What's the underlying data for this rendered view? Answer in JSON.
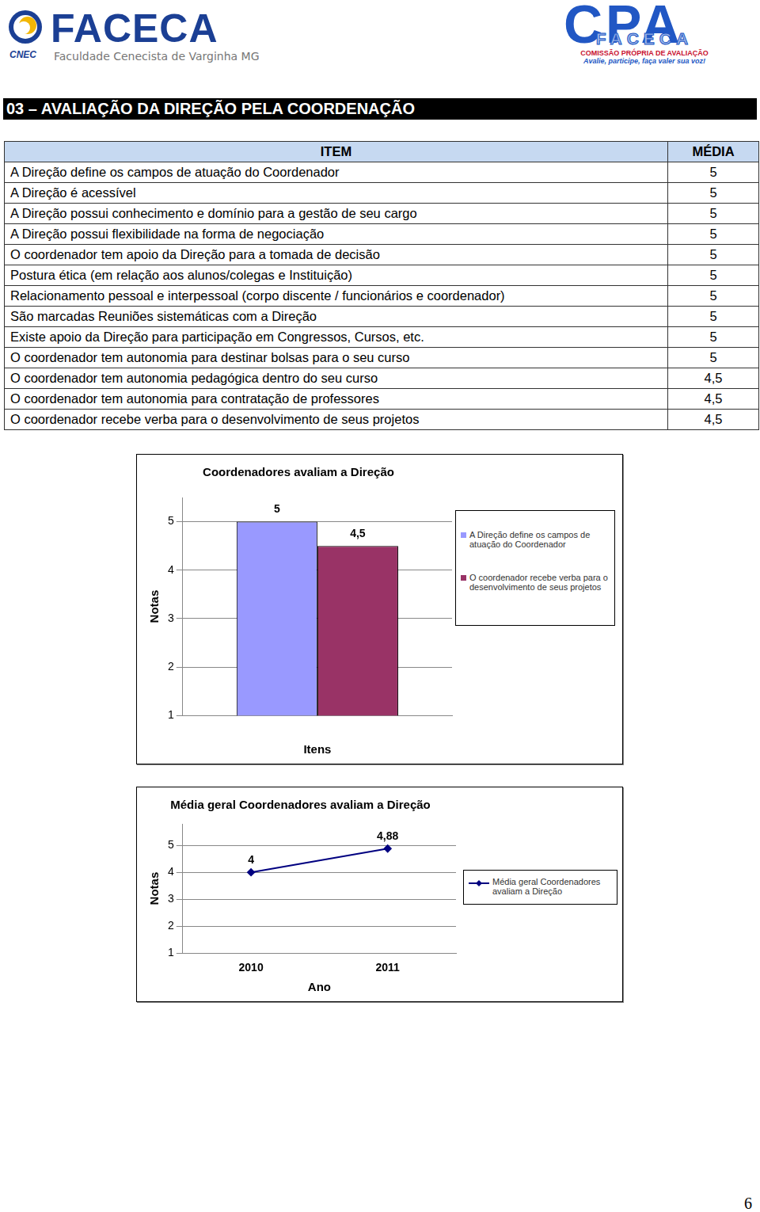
{
  "header": {
    "logo_left": {
      "title": "FACECA",
      "subtitle": "Faculdade Cenecista de Varginha MG",
      "badge": "CNEC"
    },
    "logo_right": {
      "title": "CPA",
      "overlay": "FACECA",
      "subtitle": "COMISSÃO PRÓPRIA DE AVALIAÇÃO",
      "slogan": "Avalie, participe, faça valer sua voz!"
    }
  },
  "section_title": "03 – AVALIAÇÃO DA DIREÇÃO PELA COORDENAÇÃO",
  "table": {
    "columns": [
      "ITEM",
      "MÉDIA"
    ],
    "rows": [
      [
        "A Direção define os campos de atuação do Coordenador",
        "5"
      ],
      [
        "A Direção é acessível",
        "5"
      ],
      [
        "A Direção possui conhecimento e domínio para a gestão de seu cargo",
        "5"
      ],
      [
        "A Direção possui flexibilidade na forma de negociação",
        "5"
      ],
      [
        "O coordenador tem apoio da Direção para a tomada de decisão",
        "5"
      ],
      [
        "Postura ética (em relação aos alunos/colegas e Instituição)",
        "5"
      ],
      [
        "Relacionamento pessoal e interpessoal (corpo discente / funcionários e coordenador)",
        "5"
      ],
      [
        "São marcadas Reuniões sistemáticas com a Direção",
        "5"
      ],
      [
        "Existe apoio da Direção para participação em Congressos, Cursos, etc.",
        "5"
      ],
      [
        "O coordenador tem autonomia para destinar bolsas para o seu curso",
        "5"
      ],
      [
        "O coordenador tem autonomia pedagógica dentro do seu curso",
        "4,5"
      ],
      [
        "O coordenador tem autonomia para contratação de professores",
        "4,5"
      ],
      [
        "O coordenador recebe verba para o desenvolvimento de seus projetos",
        "4,5"
      ]
    ]
  },
  "chart_data": [
    {
      "type": "bar",
      "title": "Coordenadores avaliam a Direção",
      "x_label": "Itens",
      "y_label": "Notas",
      "categories": [
        null
      ],
      "series": [
        {
          "name": "A Direção define os campos de atuação do Coordenador",
          "color": "#9999ff",
          "values": [
            5
          ],
          "value_labels": [
            "5"
          ]
        },
        {
          "name": "O coordenador recebe verba para o desenvolvimento de seus projetos",
          "color": "#993366",
          "values": [
            4.5
          ],
          "value_labels": [
            "4,5"
          ]
        }
      ],
      "ylim": [
        1,
        5.5
      ],
      "yticks": [
        1,
        2,
        3,
        4,
        5
      ],
      "grid": true,
      "legend": "right",
      "data_labels": true
    },
    {
      "type": "line",
      "title": "Média geral Coordenadores avaliam a Direção",
      "x_label": "Ano",
      "y_label": "Notas",
      "categories": [
        "2010",
        "2011"
      ],
      "series": [
        {
          "name": "Média geral Coordenadores avaliam a Direção",
          "color": "#000080",
          "values": [
            4,
            4.88
          ],
          "value_labels": [
            "4",
            "4,88"
          ],
          "marker": "diamond"
        }
      ],
      "ylim": [
        1,
        5.8
      ],
      "yticks": [
        1,
        2,
        3,
        4,
        5
      ],
      "grid": true,
      "legend": "right",
      "data_labels": true
    }
  ],
  "page_number": "6"
}
